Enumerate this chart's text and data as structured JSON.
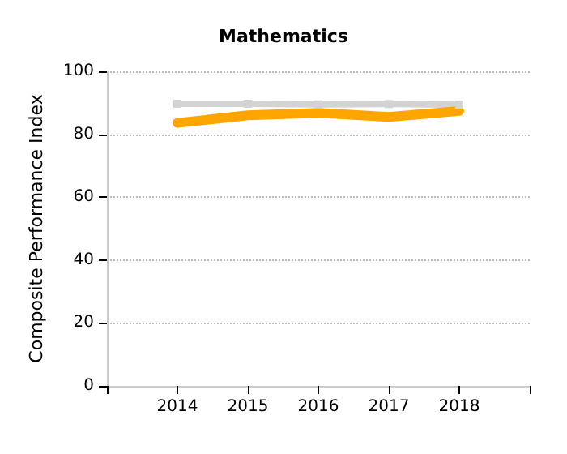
{
  "chart_data": {
    "type": "line",
    "title": "Mathematics",
    "ylabel": "Composite Performance Index",
    "x": [
      2014,
      2015,
      2016,
      2017,
      2018
    ],
    "xlim": [
      2013,
      2019
    ],
    "xticks": [
      {
        "value": 2013,
        "label": null
      },
      2014,
      2015,
      2016,
      2017,
      2018,
      {
        "value": 2019,
        "label": null
      }
    ],
    "ylim": [
      0,
      100
    ],
    "yticks": [
      0,
      20,
      40,
      60,
      80,
      100
    ],
    "grid": "y",
    "series": [
      {
        "color": "#d3d3d3",
        "marker": "square",
        "values": [
          89.7,
          89.7,
          89.5,
          89.6,
          89.4
        ]
      },
      {
        "color": "#ffa500",
        "marker": "none",
        "values": [
          83.6,
          86,
          86.8,
          85.5,
          87.4
        ]
      }
    ]
  }
}
